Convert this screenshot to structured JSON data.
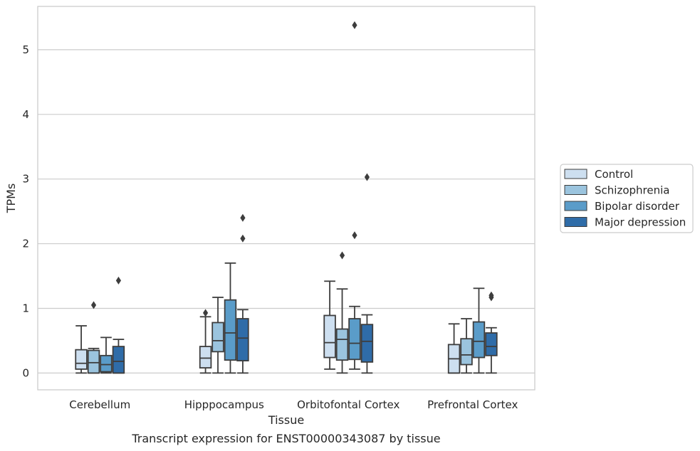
{
  "chart_data": {
    "type": "box",
    "caption": "Transcript expression for ENST00000343087 by tissue",
    "xlabel": "Tissue",
    "ylabel": "TPMs",
    "ylim": [
      -0.26,
      5.67
    ],
    "yticks": [
      "0",
      "1",
      "2",
      "3",
      "4",
      "5"
    ],
    "grid": "horizontal",
    "legend_position": "right",
    "categories": [
      "Cerebellum",
      "Hipppocampus",
      "Orbitofontal Cortex",
      "Prefrontal Cortex"
    ],
    "series": [
      {
        "name": "Control",
        "color": "#cddff0",
        "boxes": [
          {
            "whislo": 0.0,
            "q1": 0.06,
            "med": 0.15,
            "q3": 0.36,
            "whishi": 0.73,
            "fliers": []
          },
          {
            "whislo": 0.0,
            "q1": 0.08,
            "med": 0.23,
            "q3": 0.41,
            "whishi": 0.87,
            "fliers": [
              0.93
            ]
          },
          {
            "whislo": 0.06,
            "q1": 0.24,
            "med": 0.47,
            "q3": 0.89,
            "whishi": 1.42,
            "fliers": []
          },
          {
            "whislo": 0.0,
            "q1": 0.0,
            "med": 0.22,
            "q3": 0.44,
            "whishi": 0.76,
            "fliers": []
          }
        ]
      },
      {
        "name": "Schizophrenia",
        "color": "#9bc4de",
        "boxes": [
          {
            "whislo": 0.0,
            "q1": 0.0,
            "med": 0.16,
            "q3": 0.35,
            "whishi": 0.38,
            "fliers": [
              1.05
            ]
          },
          {
            "whislo": 0.0,
            "q1": 0.33,
            "med": 0.5,
            "q3": 0.78,
            "whishi": 1.17,
            "fliers": []
          },
          {
            "whislo": 0.0,
            "q1": 0.2,
            "med": 0.52,
            "q3": 0.68,
            "whishi": 1.3,
            "fliers": [
              1.82
            ]
          },
          {
            "whislo": 0.0,
            "q1": 0.13,
            "med": 0.28,
            "q3": 0.53,
            "whishi": 0.84,
            "fliers": []
          }
        ]
      },
      {
        "name": "Bipolar disorder",
        "color": "#5a9cc9",
        "boxes": [
          {
            "whislo": 0.0,
            "q1": 0.02,
            "med": 0.13,
            "q3": 0.27,
            "whishi": 0.55,
            "fliers": []
          },
          {
            "whislo": 0.0,
            "q1": 0.2,
            "med": 0.62,
            "q3": 1.13,
            "whishi": 1.7,
            "fliers": []
          },
          {
            "whislo": 0.06,
            "q1": 0.21,
            "med": 0.46,
            "q3": 0.84,
            "whishi": 1.03,
            "fliers": [
              2.13,
              5.38
            ]
          },
          {
            "whislo": 0.0,
            "q1": 0.24,
            "med": 0.49,
            "q3": 0.79,
            "whishi": 1.31,
            "fliers": []
          }
        ]
      },
      {
        "name": "Major depression",
        "color": "#2f6ca8",
        "boxes": [
          {
            "whislo": 0.0,
            "q1": 0.0,
            "med": 0.18,
            "q3": 0.41,
            "whishi": 0.52,
            "fliers": [
              1.43
            ]
          },
          {
            "whislo": 0.0,
            "q1": 0.19,
            "med": 0.54,
            "q3": 0.84,
            "whishi": 0.98,
            "fliers": [
              2.08,
              2.4
            ]
          },
          {
            "whislo": 0.0,
            "q1": 0.17,
            "med": 0.49,
            "q3": 0.75,
            "whishi": 0.9,
            "fliers": [
              3.03
            ]
          },
          {
            "whislo": 0.0,
            "q1": 0.27,
            "med": 0.41,
            "q3": 0.62,
            "whishi": 0.7,
            "fliers": [
              1.17,
              1.2
            ]
          }
        ]
      }
    ]
  }
}
